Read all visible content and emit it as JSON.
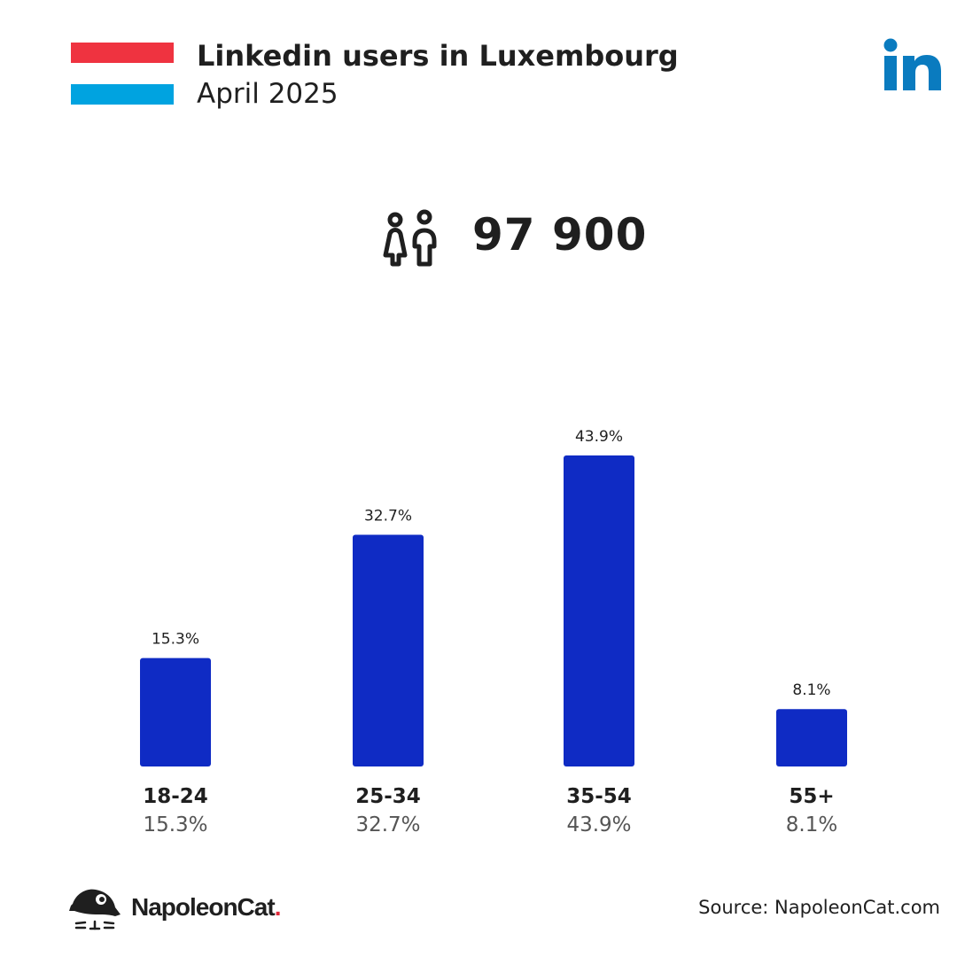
{
  "header": {
    "title": "Linkedin users in Luxembourg",
    "subtitle": "April 2025",
    "flag_colors": [
      "#ef3340",
      "#ffffff",
      "#00a3e0"
    ],
    "flag_icon": "luxembourg-flag-icon",
    "platform_icon": "linkedin-icon",
    "platform_color": "#0a7bbf"
  },
  "summary": {
    "total_users": "97 900",
    "icon": "users-icon"
  },
  "chart_data": {
    "type": "bar",
    "categories": [
      "18-24",
      "25-34",
      "35-54",
      "55+"
    ],
    "values": [
      15.3,
      32.7,
      43.9,
      8.1
    ],
    "value_labels": [
      "15.3%",
      "32.7%",
      "43.9%",
      "8.1%"
    ],
    "unit": "%",
    "bar_color": "#0f2bc4",
    "ylim": [
      0,
      43.9
    ],
    "grid": false,
    "legend": "none"
  },
  "footer": {
    "brand_name": "NapoleonCat",
    "brand_dot": ".",
    "brand_icon": "napoleoncat-logo-icon",
    "source": "Source: NapoleonCat.com"
  }
}
